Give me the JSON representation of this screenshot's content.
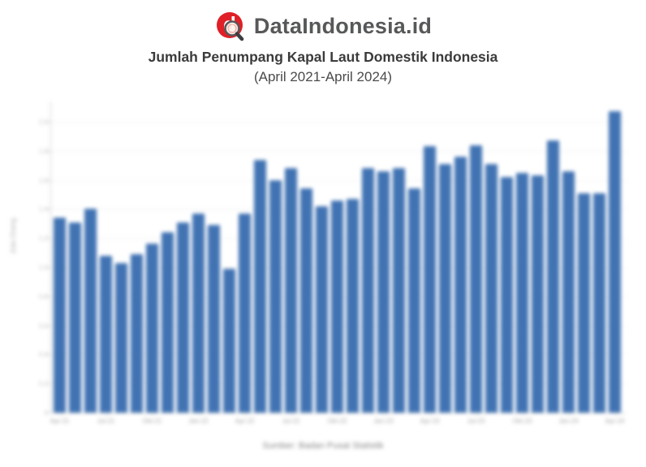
{
  "header": {
    "logo_text": "DataIndonesia.id",
    "brand_red": "#e01f26",
    "brand_gray": "#57585a"
  },
  "title": "Jumlah Penumpang Kapal Laut Domestik Indonesia",
  "subtitle": "(April 2021-April 2024)",
  "source": "Sumber: Badan Pusat Statistik",
  "chart_data": {
    "type": "bar",
    "title": "Jumlah Penumpang Kapal Laut Domestik Indonesia (April 2021-April 2024)",
    "xlabel": "",
    "ylabel": "Juta Orang",
    "categories": [
      "Apr-21",
      "Mei-21",
      "Jun-21",
      "Jul-21",
      "Agu-21",
      "Sep-21",
      "Okt-21",
      "Nov-21",
      "Des-21",
      "Jan-22",
      "Feb-22",
      "Mar-22",
      "Apr-22",
      "Mei-22",
      "Jun-22",
      "Jul-22",
      "Agu-22",
      "Sep-22",
      "Okt-22",
      "Nov-22",
      "Des-22",
      "Jan-23",
      "Feb-23",
      "Mar-23",
      "Apr-23",
      "Mei-23",
      "Jun-23",
      "Jul-23",
      "Agu-23",
      "Sep-23",
      "Okt-23",
      "Nov-23",
      "Des-23",
      "Jan-24",
      "Feb-24",
      "Mar-24",
      "Apr-24"
    ],
    "values": [
      1.34,
      1.31,
      1.4,
      1.08,
      1.03,
      1.09,
      1.16,
      1.24,
      1.31,
      1.37,
      1.29,
      0.99,
      1.37,
      1.74,
      1.6,
      1.68,
      1.54,
      1.42,
      1.46,
      1.47,
      1.68,
      1.66,
      1.68,
      1.54,
      1.83,
      1.71,
      1.76,
      1.84,
      1.71,
      1.62,
      1.65,
      1.63,
      1.87,
      1.66,
      1.51,
      1.51,
      2.07
    ],
    "x_tick_labels_shown": [
      "Apr-21",
      "Jul-21",
      "Okt-21",
      "Jan-22",
      "Apr-22",
      "Jul-22",
      "Okt-22",
      "Jan-23",
      "Apr-23",
      "Jul-23",
      "Okt-23",
      "Jan-24",
      "Apr-24"
    ],
    "x_tick_every": 3,
    "y_ticks": [
      0,
      0.2,
      0.4,
      0.6,
      0.8,
      1.0,
      1.2,
      1.4,
      1.6,
      1.8,
      2.0
    ],
    "y_tick_labels": [
      "0",
      "0,2",
      "0,4",
      "0,6",
      "0,8",
      "1,0",
      "1,2",
      "1,4",
      "1,6",
      "1,8",
      "2,0"
    ],
    "ylim": [
      0,
      2.0
    ],
    "bar_color": "#4173b3",
    "grid": true,
    "legend_position": "none"
  }
}
